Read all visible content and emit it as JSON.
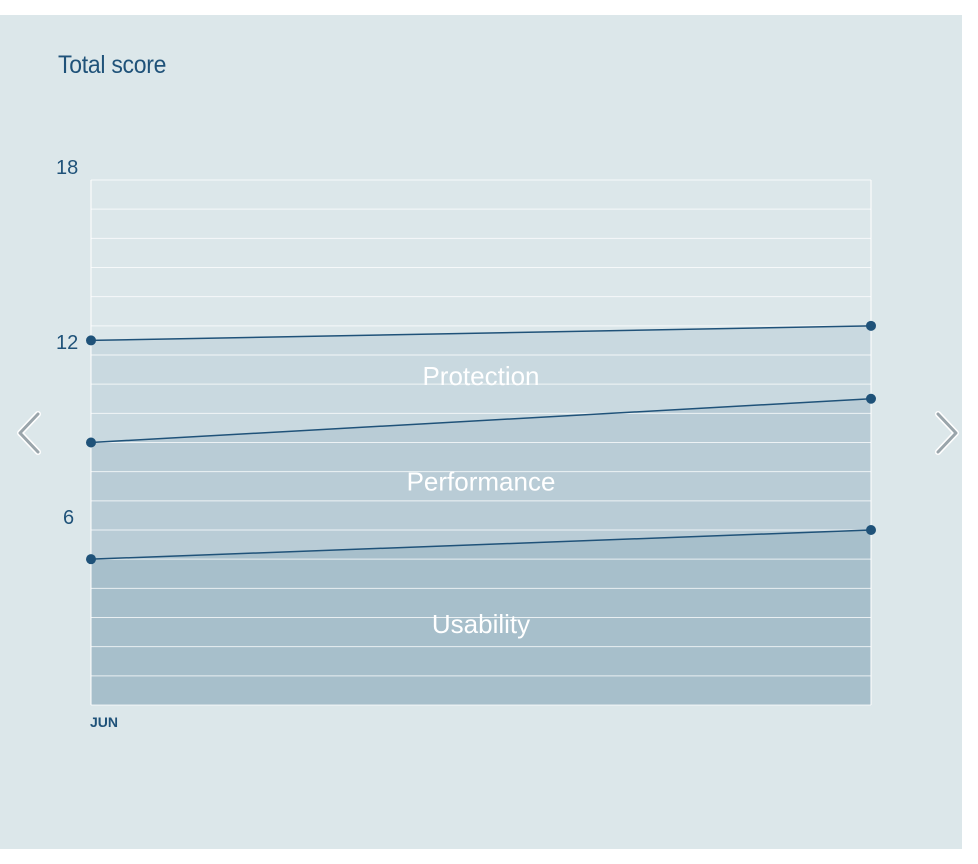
{
  "chart_data": {
    "type": "area",
    "title": "Total score",
    "xlabel": "",
    "ylabel": "",
    "x": [
      "JUN",
      ""
    ],
    "y_ticks": [
      "18",
      "12",
      "6"
    ],
    "ylim": [
      0,
      18
    ],
    "grid": true,
    "series": [
      {
        "name": "Usability",
        "values": [
          5.0,
          6.0
        ]
      },
      {
        "name": "Performance",
        "values": [
          9.0,
          10.5
        ]
      },
      {
        "name": "Protection",
        "values": [
          12.5,
          13.0
        ]
      }
    ],
    "colors": {
      "usability_fill": "#a7bfcb",
      "performance_fill": "#b9ccd6",
      "protection_fill": "#c9d9e0",
      "background": "#dce7ea",
      "line": "#1f5279",
      "grid": "#ffffff"
    }
  },
  "navigation": {
    "prev_icon": "chevron-left-icon",
    "next_icon": "chevron-right-icon"
  }
}
